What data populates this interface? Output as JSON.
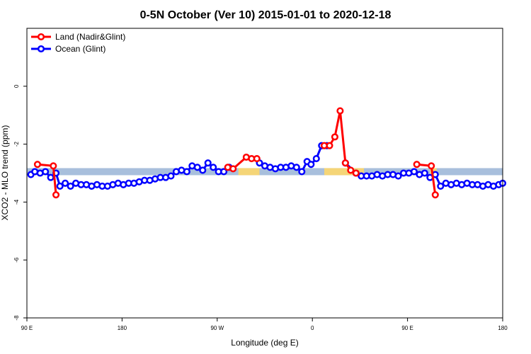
{
  "chart_data": {
    "type": "line",
    "title": "0-5N October (Ver 10)   2015-01-01 to 2020-12-18",
    "xlabel": "Longitude (deg E)",
    "ylabel": "XCO2 - MLO trend (ppm)",
    "xlim": [
      0,
      360
    ],
    "ylim": [
      -8,
      2
    ],
    "x_ticks": [
      {
        "value": 0,
        "label": "90 E"
      },
      {
        "value": 72,
        "label": "180"
      },
      {
        "value": 144,
        "label": "90 W"
      },
      {
        "value": 216,
        "label": "0"
      },
      {
        "value": 288,
        "label": "90 E"
      },
      {
        "value": 360,
        "label": "180"
      }
    ],
    "y_ticks": [
      {
        "value": 0,
        "label": "0"
      },
      {
        "value": -2,
        "label": "-2"
      },
      {
        "value": -4,
        "label": "-4"
      },
      {
        "value": -6,
        "label": "-6"
      },
      {
        "value": -8,
        "label": "-8"
      }
    ],
    "legend_position": "top-left",
    "band": {
      "y_center": -2.95,
      "color": "#a8bfdc"
    },
    "band_highlights": [
      {
        "x_start": 160,
        "x_end": 176,
        "color": "#f5d577"
      },
      {
        "x_start": 225,
        "x_end": 255,
        "color": "#f5d577"
      },
      {
        "x_start": 305,
        "x_end": 310,
        "color": "#f5d577"
      }
    ],
    "series": [
      {
        "name": "Land (Nadir&Glint)",
        "color": "#ff0000",
        "segments": [
          {
            "x": [
              8,
              20,
              22
            ],
            "y": [
              -2.7,
              -2.75,
              -3.75
            ]
          },
          {
            "x": [
              152,
              156,
              166,
              170,
              174
            ],
            "y": [
              -2.8,
              -2.85,
              -2.45,
              -2.5,
              -2.5
            ]
          },
          {
            "x": [
              225,
              229,
              233,
              237,
              241,
              245,
              249
            ],
            "y": [
              -2.05,
              -2.05,
              -1.75,
              -0.85,
              -2.65,
              -2.9,
              -3.0
            ]
          },
          {
            "x": [
              295,
              306,
              309
            ],
            "y": [
              -2.7,
              -2.75,
              -3.75
            ]
          }
        ]
      },
      {
        "name": "Ocean (Glint)",
        "color": "#0000ff",
        "segments": [
          {
            "x": [
              3,
              6,
              10,
              14,
              18,
              22,
              25,
              29,
              33,
              37,
              41,
              45,
              49,
              53,
              57,
              61,
              65,
              69,
              73,
              77,
              81,
              85,
              89,
              93,
              97,
              101,
              105,
              109,
              113,
              117,
              121,
              125,
              129,
              133,
              137,
              141,
              145,
              149,
              153
            ],
            "y": [
              -3.05,
              -2.95,
              -3.0,
              -2.95,
              -3.15,
              -3.0,
              -3.45,
              -3.35,
              -3.45,
              -3.35,
              -3.4,
              -3.4,
              -3.45,
              -3.4,
              -3.45,
              -3.45,
              -3.4,
              -3.35,
              -3.4,
              -3.35,
              -3.35,
              -3.3,
              -3.25,
              -3.25,
              -3.2,
              -3.15,
              -3.15,
              -3.1,
              -2.95,
              -2.9,
              -2.95,
              -2.75,
              -2.8,
              -2.9,
              -2.65,
              -2.8,
              -2.95,
              -2.95,
              -2.8
            ]
          },
          {
            "x": [
              176,
              180,
              184,
              188,
              192,
              196,
              200,
              204,
              208,
              212,
              215,
              219,
              223,
              227
            ],
            "y": [
              -2.65,
              -2.75,
              -2.8,
              -2.85,
              -2.8,
              -2.8,
              -2.75,
              -2.8,
              -2.95,
              -2.6,
              -2.7,
              -2.5,
              -2.05,
              -2.05
            ]
          },
          {
            "x": [
              241,
              249,
              253,
              257,
              261,
              265,
              269,
              273,
              277,
              281,
              285,
              289,
              293,
              297,
              301,
              305,
              309,
              313,
              317,
              321,
              325,
              329,
              333,
              337,
              341,
              345,
              349,
              353,
              357,
              360
            ],
            "y": [
              -2.65,
              -3.0,
              -3.1,
              -3.1,
              -3.1,
              -3.05,
              -3.1,
              -3.05,
              -3.05,
              -3.1,
              -3.0,
              -3.0,
              -2.95,
              -3.05,
              -3.0,
              -3.15,
              -3.05,
              -3.45,
              -3.35,
              -3.4,
              -3.35,
              -3.4,
              -3.35,
              -3.4,
              -3.4,
              -3.45,
              -3.4,
              -3.45,
              -3.4,
              -3.35
            ]
          }
        ]
      }
    ]
  }
}
